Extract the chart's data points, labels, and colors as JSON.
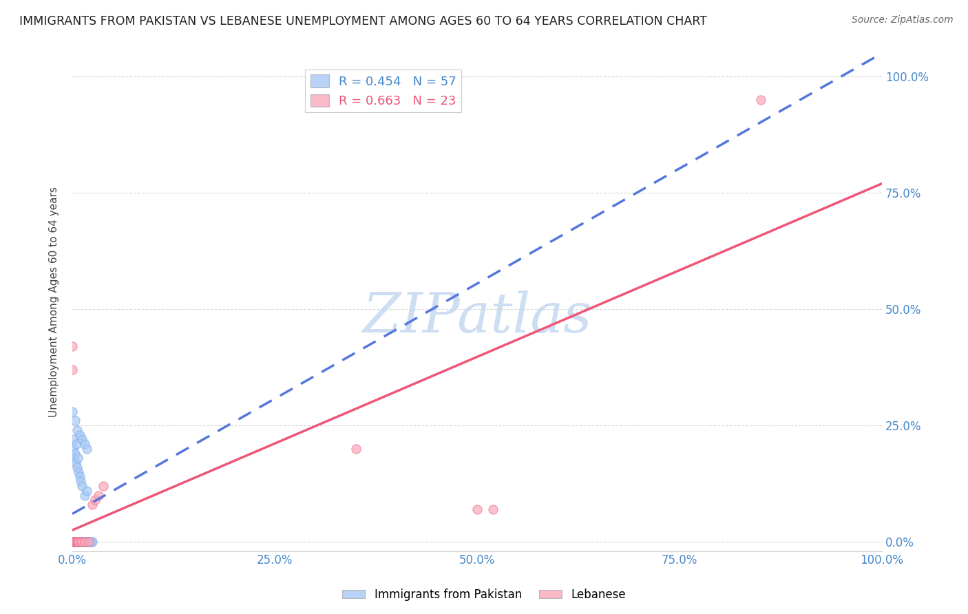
{
  "title": "IMMIGRANTS FROM PAKISTAN VS LEBANESE UNEMPLOYMENT AMONG AGES 60 TO 64 YEARS CORRELATION CHART",
  "source": "Source: ZipAtlas.com",
  "ylabel": "Unemployment Among Ages 60 to 64 years",
  "xlim": [
    0,
    1.0
  ],
  "ylim": [
    -0.02,
    1.05
  ],
  "xticks": [
    0.0,
    0.25,
    0.5,
    0.75,
    1.0
  ],
  "yticks": [
    0.0,
    0.25,
    0.5,
    0.75,
    1.0
  ],
  "xticklabels": [
    "0.0%",
    "25.0%",
    "50.0%",
    "75.0%",
    "100.0%"
  ],
  "right_yticklabels": [
    "0.0%",
    "25.0%",
    "50.0%",
    "75.0%",
    "100.0%"
  ],
  "pakistan_color": "#a8c8f5",
  "pakistan_edge_color": "#7aaee8",
  "lebanese_color": "#f9a8b8",
  "lebanese_edge_color": "#f07090",
  "pakistan_line_color": "#5577dd",
  "lebanese_line_color": "#ee5577",
  "pakistan_R": 0.454,
  "pakistan_N": 57,
  "lebanese_R": 0.663,
  "lebanese_N": 23,
  "watermark_text": "ZIPatlas",
  "watermark_color": "#c5d8f0",
  "background_color": "#ffffff",
  "grid_color": "#cccccc",
  "pakistan_scatter_x": [
    0.0,
    0.001,
    0.001,
    0.002,
    0.002,
    0.003,
    0.003,
    0.004,
    0.004,
    0.005,
    0.005,
    0.006,
    0.006,
    0.007,
    0.007,
    0.008,
    0.008,
    0.009,
    0.009,
    0.01,
    0.01,
    0.011,
    0.012,
    0.013,
    0.014,
    0.015,
    0.016,
    0.017,
    0.018,
    0.019,
    0.02,
    0.021,
    0.022,
    0.023,
    0.024,
    0.025,
    0.0,
    0.001,
    0.002,
    0.003,
    0.004,
    0.005,
    0.006,
    0.007,
    0.008,
    0.009,
    0.01,
    0.012,
    0.015,
    0.018,
    0.0,
    0.003,
    0.006,
    0.009,
    0.012,
    0.015,
    0.018
  ],
  "pakistan_scatter_y": [
    0.0,
    0.0,
    0.0,
    0.0,
    0.0,
    0.0,
    0.0,
    0.0,
    0.0,
    0.0,
    0.0,
    0.0,
    0.0,
    0.0,
    0.0,
    0.0,
    0.0,
    0.0,
    0.0,
    0.0,
    0.0,
    0.0,
    0.0,
    0.0,
    0.0,
    0.0,
    0.0,
    0.0,
    0.0,
    0.0,
    0.0,
    0.0,
    0.0,
    0.0,
    0.0,
    0.0,
    0.18,
    0.2,
    0.22,
    0.19,
    0.17,
    0.21,
    0.16,
    0.18,
    0.15,
    0.14,
    0.13,
    0.12,
    0.1,
    0.11,
    0.28,
    0.26,
    0.24,
    0.23,
    0.22,
    0.21,
    0.2
  ],
  "lebanese_scatter_x": [
    0.0,
    0.001,
    0.002,
    0.003,
    0.004,
    0.005,
    0.006,
    0.007,
    0.008,
    0.01,
    0.012,
    0.015,
    0.02,
    0.025,
    0.028,
    0.032,
    0.038,
    0.0,
    0.0,
    0.35,
    0.5,
    0.52,
    0.85
  ],
  "lebanese_scatter_y": [
    0.0,
    0.0,
    0.0,
    0.0,
    0.0,
    0.0,
    0.0,
    0.0,
    0.0,
    0.0,
    0.0,
    0.0,
    0.0,
    0.08,
    0.09,
    0.1,
    0.12,
    0.42,
    0.37,
    0.2,
    0.07,
    0.07,
    0.95
  ],
  "pak_line_x": [
    0.0,
    1.0
  ],
  "pak_line_y": [
    0.06,
    1.05
  ],
  "leb_line_x": [
    0.0,
    1.0
  ],
  "leb_line_y": [
    0.025,
    0.77
  ]
}
